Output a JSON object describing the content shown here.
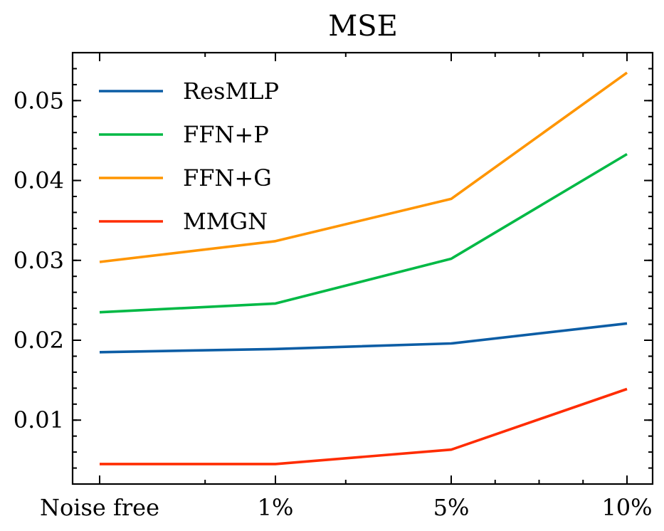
{
  "chart_data": {
    "type": "line",
    "title": "MSE",
    "xlabel": "",
    "ylabel": "",
    "categories": [
      "Noise free",
      "1%",
      "5%",
      "10%"
    ],
    "x_minor_ticks": [
      0.6,
      1.4,
      2.25,
      2.5,
      2.75
    ],
    "ylim": [
      0.002,
      0.056
    ],
    "yticks": [
      0.01,
      0.02,
      0.03,
      0.04,
      0.05
    ],
    "ytick_labels": [
      "0.01",
      "0.02",
      "0.03",
      "0.04",
      "0.05"
    ],
    "grid": false,
    "legend_position": "upper-left",
    "series": [
      {
        "name": "ResMLP",
        "color": "#0C5DA5",
        "values": [
          0.0185,
          0.0189,
          0.0196,
          0.0221
        ]
      },
      {
        "name": "FFN+P",
        "color": "#00B945",
        "values": [
          0.0235,
          0.0246,
          0.0302,
          0.0433
        ]
      },
      {
        "name": "FFN+G",
        "color": "#FF9500",
        "values": [
          0.0298,
          0.0324,
          0.0377,
          0.0535
        ]
      },
      {
        "name": "MMGN",
        "color": "#FF2C00",
        "values": [
          0.0045,
          0.0045,
          0.0063,
          0.0139
        ]
      }
    ]
  }
}
